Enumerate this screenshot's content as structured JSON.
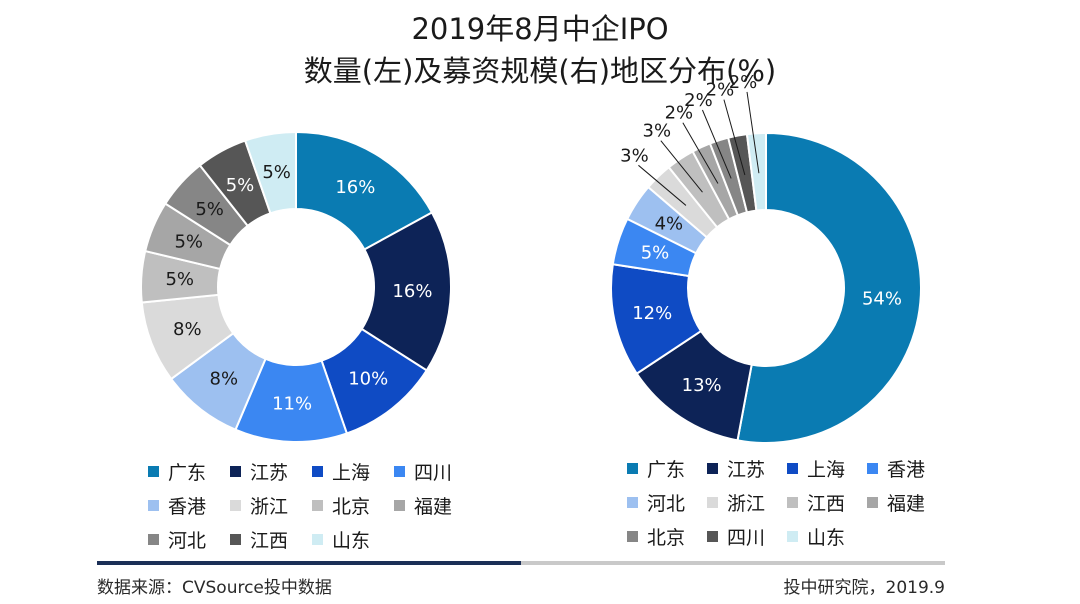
{
  "title": {
    "line1": "2019年8月中企IPO",
    "line2": "数量(左)及募资规模(右)地区分布(%)"
  },
  "chart_data": [
    {
      "type": "pie",
      "variant": "donut",
      "name": "IPO数量地区分布",
      "categories": [
        "广东",
        "江苏",
        "上海",
        "四川",
        "香港",
        "浙江",
        "北京",
        "福建",
        "河北",
        "江西",
        "山东"
      ],
      "values": [
        16,
        16,
        10,
        11,
        8,
        8,
        5,
        5,
        5,
        5,
        5
      ],
      "colors": [
        "#0a7bb2",
        "#0d2357",
        "#0f4bc4",
        "#3b87f2",
        "#9dc0f0",
        "#dadada",
        "#bfbfbf",
        "#a6a6a6",
        "#868686",
        "#565656",
        "#cfecf3"
      ],
      "label_colors": [
        "#ffffff",
        "#ffffff",
        "#ffffff",
        "#ffffff",
        "#1a1a1a",
        "#1a1a1a",
        "#1a1a1a",
        "#1a1a1a",
        "#1a1a1a",
        "#ffffff",
        "#1a1a1a"
      ],
      "labels": [
        "16%",
        "16%",
        "10%",
        "11%",
        "8%",
        "8%",
        "5%",
        "5%",
        "5%",
        "5%",
        "5%"
      ],
      "legend": [
        "广东",
        "江苏",
        "上海",
        "四川",
        "香港",
        "浙江",
        "北京",
        "福建",
        "河北",
        "江西",
        "山东"
      ],
      "legend_colors": [
        "#0a7bb2",
        "#0d2357",
        "#0f4bc4",
        "#3b87f2",
        "#9dc0f0",
        "#dadada",
        "#bfbfbf",
        "#a6a6a6",
        "#868686",
        "#565656",
        "#cfecf3"
      ],
      "unit": "%"
    },
    {
      "type": "pie",
      "variant": "donut",
      "name": "IPO募资规模地区分布",
      "categories": [
        "广东",
        "江苏",
        "上海",
        "香港",
        "河北",
        "浙江",
        "江西",
        "福建",
        "北京",
        "四川",
        "山东"
      ],
      "values": [
        54,
        13,
        12,
        5,
        4,
        3,
        3,
        2,
        2,
        2,
        2
      ],
      "colors": [
        "#0a7bb2",
        "#0d2357",
        "#0f4bc4",
        "#3b87f2",
        "#9dc0f0",
        "#dadada",
        "#bfbfbf",
        "#a6a6a6",
        "#868686",
        "#565656",
        "#cfecf3"
      ],
      "label_colors": [
        "#ffffff",
        "#ffffff",
        "#ffffff",
        "#ffffff",
        "#1a1a1a",
        "#1a1a1a",
        "#1a1a1a",
        "#1a1a1a",
        "#1a1a1a",
        "#1a1a1a",
        "#1a1a1a"
      ],
      "labels": [
        "54%",
        "13%",
        "12%",
        "5%",
        "4%",
        "3%",
        "3%",
        "2%",
        "2%",
        "2%",
        "2%"
      ],
      "legend": [
        "广东",
        "江苏",
        "上海",
        "香港",
        "河北",
        "浙江",
        "江西",
        "福建",
        "北京",
        "四川",
        "山东"
      ],
      "legend_colors": [
        "#0a7bb2",
        "#0d2357",
        "#0f4bc4",
        "#3b87f2",
        "#9dc0f0",
        "#dadada",
        "#bfbfbf",
        "#a6a6a6",
        "#868686",
        "#565656",
        "#cfecf3"
      ],
      "unit": "%"
    }
  ],
  "footer": {
    "source": "数据来源：CVSource投中数据",
    "credit": "投中研究院，2019.9"
  }
}
